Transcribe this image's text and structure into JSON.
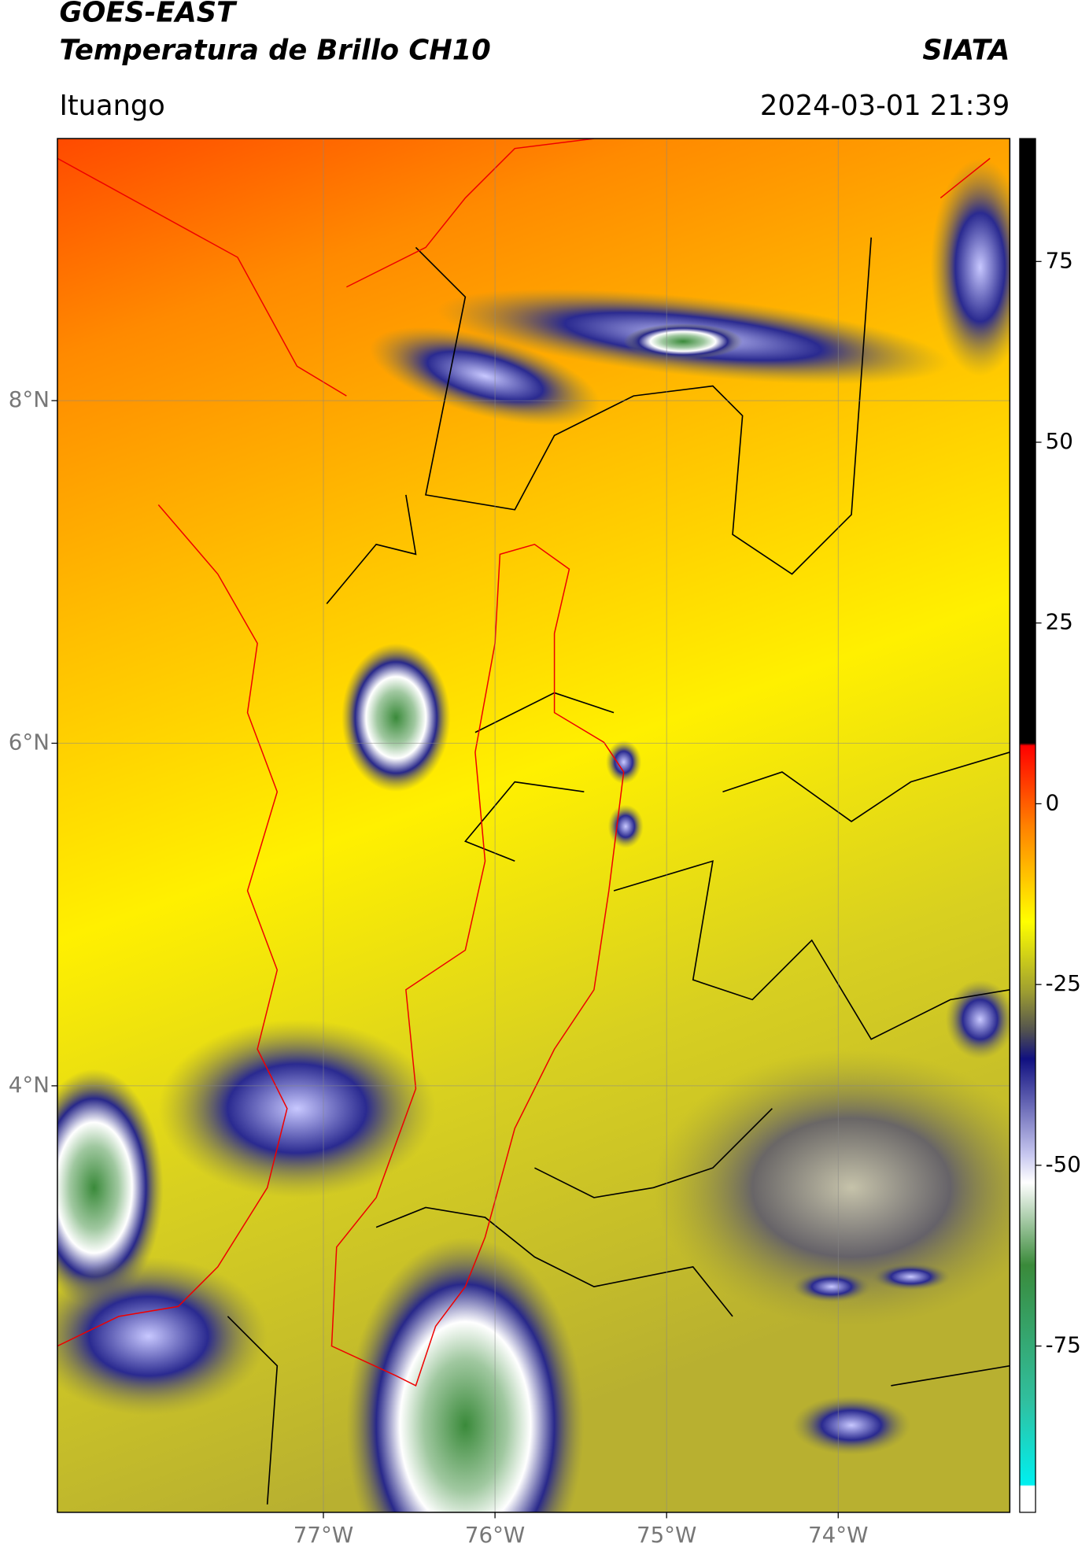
{
  "header": {
    "title": "GOES-EAST",
    "subtitle": "Temperatura de Brillo CH10",
    "source": "SIATA",
    "region": "Ituango",
    "datetime": "2024-03-01 21:39"
  },
  "map": {
    "xlim": [
      -78.55,
      -73.0
    ],
    "ylim": [
      1.51,
      9.53
    ],
    "xticks": [
      {
        "value": -77,
        "label": "77°W"
      },
      {
        "value": -76,
        "label": "76°W"
      },
      {
        "value": -75,
        "label": "75°W"
      },
      {
        "value": -74,
        "label": "74°W"
      }
    ],
    "yticks": [
      {
        "value": 8,
        "label": "8°N"
      },
      {
        "value": 6,
        "label": "6°N"
      },
      {
        "value": 4,
        "label": "4°N"
      }
    ],
    "grid": true
  },
  "colorbar": {
    "ylim": [
      -98,
      92
    ],
    "yticks": [
      75,
      50,
      25,
      0,
      -25,
      -50,
      -75
    ]
  }
}
